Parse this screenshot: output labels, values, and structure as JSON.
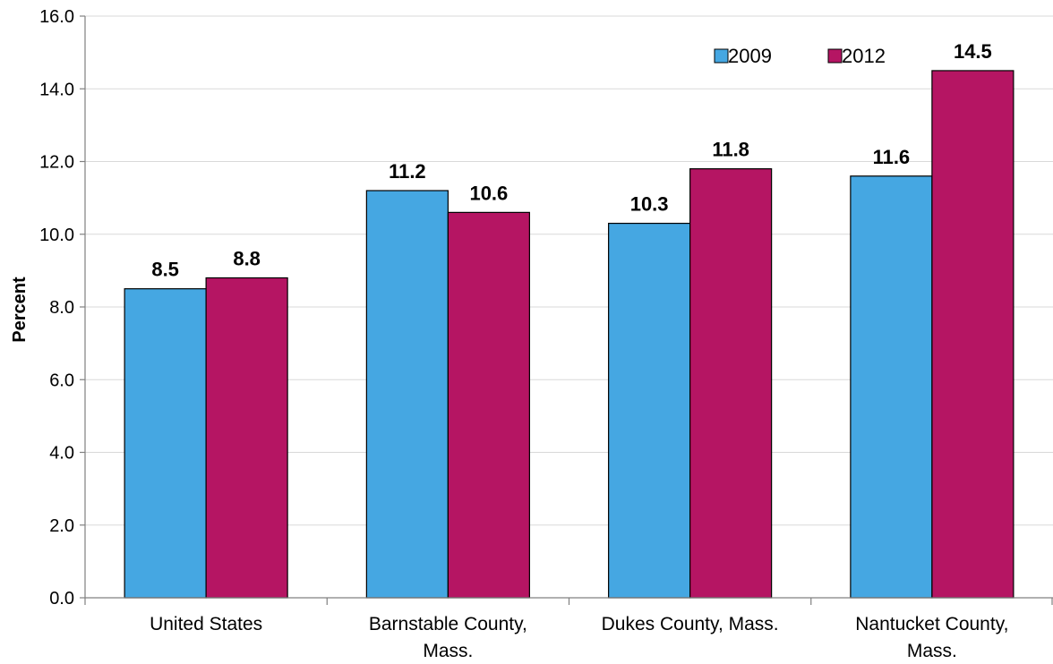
{
  "chart_data": {
    "type": "bar",
    "categories": [
      [
        "United States"
      ],
      [
        "Barnstable County,",
        "Mass."
      ],
      [
        "Dukes County, Mass."
      ],
      [
        "Nantucket County,",
        "Mass."
      ]
    ],
    "series": [
      {
        "name": "2009",
        "values": [
          8.5,
          11.2,
          10.3,
          11.6
        ],
        "labels": [
          "8.5",
          "11.2",
          "10.3",
          "11.6"
        ]
      },
      {
        "name": "2012",
        "values": [
          8.8,
          10.6,
          11.8,
          14.5
        ],
        "labels": [
          "8.8",
          "10.6",
          "11.8",
          "14.5"
        ]
      }
    ],
    "ylabel": "Percent",
    "ylim": [
      0,
      16
    ],
    "yticks": [
      "0.0",
      "2.0",
      "4.0",
      "6.0",
      "8.0",
      "10.0",
      "12.0",
      "14.0",
      "16.0"
    ],
    "ytick_values": [
      0,
      2,
      4,
      6,
      8,
      10,
      12,
      14,
      16
    ],
    "grid": true,
    "legend_position": "top-right",
    "colors": {
      "2009": "#45A7E2",
      "2012": "#B51563",
      "grid": "#D9D9D9",
      "axis": "#808080",
      "bar_outline": "#000000"
    }
  }
}
